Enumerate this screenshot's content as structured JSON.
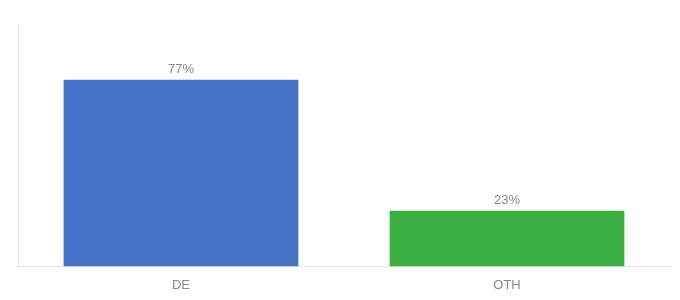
{
  "chart_data": {
    "type": "bar",
    "categories": [
      "DE",
      "OTH"
    ],
    "values": [
      77,
      23
    ],
    "value_labels": [
      "77%",
      "23%"
    ],
    "data_labels": true,
    "colors": [
      "#4472c4",
      "#3cb043"
    ],
    "ylim": [
      0,
      100
    ],
    "grid": false,
    "tick_labels": "x"
  }
}
